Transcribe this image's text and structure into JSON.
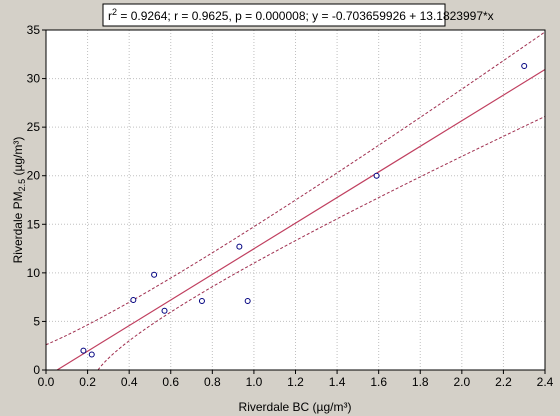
{
  "chart_data": {
    "type": "scatter",
    "stats": {
      "r2_symbol": "r",
      "r2_exp": "2",
      "r2_value": " = 0.9264;  r = 0.9625, p = 0.000008;  y = -0.703659926 + 13.1823997*x"
    },
    "xlabel": "Riverdale BC (µg/m³)",
    "ylabel": {
      "prefix": "Riverdale PM",
      "subscript": "2.5",
      "suffix": " (µg/m³)"
    },
    "xlim": [
      0.0,
      2.4
    ],
    "ylim": [
      0,
      35
    ],
    "xticks": [
      "0.0",
      "0.2",
      "0.4",
      "0.6",
      "0.8",
      "1.0",
      "1.2",
      "1.4",
      "1.6",
      "1.8",
      "2.0",
      "2.2",
      "2.4"
    ],
    "yticks": [
      "0",
      "5",
      "10",
      "15",
      "20",
      "25",
      "30",
      "35"
    ],
    "grid": true,
    "points": [
      {
        "x": 0.18,
        "y": 2.0
      },
      {
        "x": 0.22,
        "y": 1.6
      },
      {
        "x": 0.42,
        "y": 7.2
      },
      {
        "x": 0.52,
        "y": 9.8
      },
      {
        "x": 0.57,
        "y": 6.1
      },
      {
        "x": 0.75,
        "y": 7.1
      },
      {
        "x": 0.93,
        "y": 12.7
      },
      {
        "x": 0.97,
        "y": 7.1
      },
      {
        "x": 1.59,
        "y": 20.0
      },
      {
        "x": 2.3,
        "y": 31.3
      }
    ],
    "fit": {
      "intercept": -0.703659926,
      "slope": 13.1823997
    },
    "confidence_band": {
      "upper": [
        {
          "x": 0.0,
          "y": 2.6
        },
        {
          "x": 0.9,
          "y": 13.4
        },
        {
          "x": 2.4,
          "y": 34.8
        }
      ],
      "lower": [
        {
          "x": 0.25,
          "y": 0.0
        },
        {
          "x": 0.9,
          "y": 9.8
        },
        {
          "x": 2.4,
          "y": 26.1
        }
      ]
    },
    "colors": {
      "background": "#d4d0c8",
      "plot_bg": "#ffffff",
      "grid": "#c0c0c0",
      "fit_line": "#c04060",
      "band": "#a03050",
      "points": "#00007f"
    }
  }
}
